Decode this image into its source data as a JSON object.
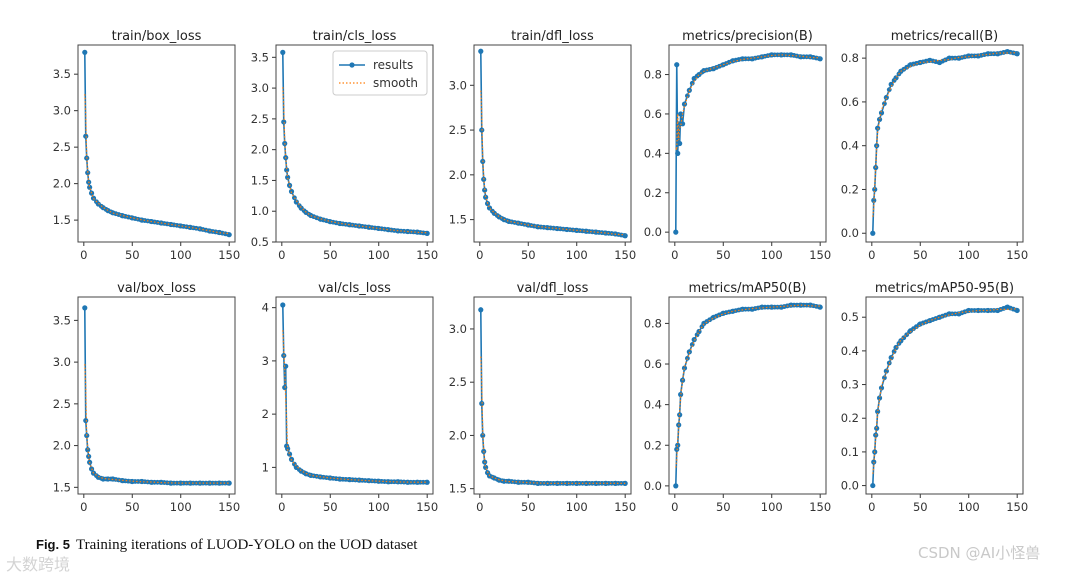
{
  "chart_data": [
    {
      "type": "line",
      "title": "train/box_loss",
      "ylim": [
        1.2,
        3.9
      ],
      "yticks": [
        1.5,
        2.0,
        2.5,
        3.0,
        3.5
      ],
      "xlim": [
        -6,
        156
      ],
      "xticks": [
        0,
        50,
        100,
        150
      ],
      "x": [
        1,
        2,
        3,
        4,
        5,
        6,
        8,
        10,
        15,
        20,
        25,
        30,
        40,
        50,
        60,
        70,
        80,
        90,
        100,
        110,
        120,
        130,
        140,
        150
      ],
      "values": [
        3.8,
        2.65,
        2.35,
        2.15,
        2.02,
        1.95,
        1.87,
        1.8,
        1.72,
        1.67,
        1.63,
        1.6,
        1.56,
        1.53,
        1.5,
        1.48,
        1.46,
        1.44,
        1.42,
        1.4,
        1.38,
        1.35,
        1.33,
        1.3
      ]
    },
    {
      "type": "line",
      "title": "train/cls_loss",
      "ylim": [
        0.5,
        3.7
      ],
      "yticks": [
        0.5,
        1.0,
        1.5,
        2.0,
        2.5,
        3.0,
        3.5
      ],
      "xlim": [
        -6,
        156
      ],
      "xticks": [
        0,
        50,
        100,
        150
      ],
      "x": [
        1,
        2,
        3,
        4,
        5,
        6,
        8,
        10,
        15,
        20,
        25,
        30,
        40,
        50,
        60,
        70,
        80,
        90,
        100,
        110,
        120,
        130,
        140,
        150
      ],
      "values": [
        3.58,
        2.45,
        2.1,
        1.87,
        1.67,
        1.55,
        1.42,
        1.32,
        1.15,
        1.05,
        0.98,
        0.93,
        0.87,
        0.83,
        0.8,
        0.78,
        0.76,
        0.74,
        0.72,
        0.7,
        0.68,
        0.67,
        0.66,
        0.64
      ],
      "legend": {
        "placement": "top-right",
        "entries": [
          "results",
          "smooth"
        ]
      }
    },
    {
      "type": "line",
      "title": "train/dfl_loss",
      "ylim": [
        1.25,
        3.45
      ],
      "yticks": [
        1.5,
        2.0,
        2.5,
        3.0
      ],
      "xlim": [
        -6,
        156
      ],
      "xticks": [
        0,
        50,
        100,
        150
      ],
      "x": [
        1,
        2,
        3,
        4,
        5,
        6,
        8,
        10,
        15,
        20,
        25,
        30,
        40,
        50,
        60,
        70,
        80,
        90,
        100,
        110,
        120,
        130,
        140,
        150
      ],
      "values": [
        3.38,
        2.5,
        2.15,
        1.95,
        1.83,
        1.75,
        1.68,
        1.63,
        1.57,
        1.53,
        1.5,
        1.48,
        1.46,
        1.44,
        1.42,
        1.41,
        1.4,
        1.39,
        1.38,
        1.37,
        1.36,
        1.35,
        1.34,
        1.32
      ]
    },
    {
      "type": "line",
      "title": "metrics/precision(B)",
      "ylim": [
        -0.05,
        0.95
      ],
      "yticks": [
        0.0,
        0.2,
        0.4,
        0.6,
        0.8
      ],
      "xlim": [
        -6,
        156
      ],
      "xticks": [
        0,
        50,
        100,
        150
      ],
      "x": [
        1,
        2,
        3,
        4,
        5,
        6,
        8,
        10,
        15,
        20,
        25,
        30,
        40,
        50,
        60,
        70,
        80,
        90,
        100,
        110,
        120,
        130,
        140,
        150
      ],
      "values": [
        0.0,
        0.85,
        0.4,
        0.55,
        0.45,
        0.6,
        0.55,
        0.65,
        0.72,
        0.78,
        0.8,
        0.82,
        0.83,
        0.85,
        0.87,
        0.88,
        0.88,
        0.89,
        0.9,
        0.9,
        0.9,
        0.89,
        0.89,
        0.88
      ]
    },
    {
      "type": "line",
      "title": "metrics/recall(B)",
      "ylim": [
        -0.04,
        0.86
      ],
      "yticks": [
        0.0,
        0.2,
        0.4,
        0.6,
        0.8
      ],
      "xlim": [
        -6,
        156
      ],
      "xticks": [
        0,
        50,
        100,
        150
      ],
      "x": [
        1,
        2,
        3,
        4,
        5,
        6,
        8,
        10,
        15,
        20,
        25,
        30,
        40,
        50,
        60,
        70,
        80,
        90,
        100,
        110,
        120,
        130,
        140,
        150
      ],
      "values": [
        0.0,
        0.15,
        0.2,
        0.3,
        0.4,
        0.48,
        0.52,
        0.55,
        0.62,
        0.68,
        0.71,
        0.74,
        0.77,
        0.78,
        0.79,
        0.78,
        0.8,
        0.8,
        0.81,
        0.81,
        0.82,
        0.82,
        0.83,
        0.82
      ]
    },
    {
      "type": "line",
      "title": "val/box_loss",
      "ylim": [
        1.42,
        3.78
      ],
      "yticks": [
        1.5,
        2.0,
        2.5,
        3.0,
        3.5
      ],
      "xlim": [
        -6,
        156
      ],
      "xticks": [
        0,
        50,
        100,
        150
      ],
      "x": [
        1,
        2,
        3,
        4,
        5,
        6,
        8,
        10,
        15,
        20,
        25,
        30,
        40,
        50,
        60,
        70,
        80,
        90,
        100,
        110,
        120,
        130,
        140,
        150
      ],
      "values": [
        3.65,
        2.3,
        2.12,
        1.95,
        1.87,
        1.8,
        1.72,
        1.67,
        1.62,
        1.6,
        1.6,
        1.6,
        1.58,
        1.57,
        1.57,
        1.56,
        1.56,
        1.55,
        1.55,
        1.55,
        1.55,
        1.55,
        1.55,
        1.55
      ]
    },
    {
      "type": "line",
      "title": "val/cls_loss",
      "ylim": [
        0.5,
        4.2
      ],
      "yticks": [
        1,
        2,
        3,
        4
      ],
      "xlim": [
        -6,
        156
      ],
      "xticks": [
        0,
        50,
        100,
        150
      ],
      "x": [
        1,
        2,
        3,
        4,
        5,
        6,
        8,
        10,
        15,
        20,
        25,
        30,
        40,
        50,
        60,
        70,
        80,
        90,
        100,
        110,
        120,
        130,
        140,
        150
      ],
      "values": [
        4.05,
        3.1,
        2.5,
        2.9,
        1.4,
        1.35,
        1.25,
        1.15,
        1.0,
        0.93,
        0.88,
        0.85,
        0.82,
        0.8,
        0.78,
        0.77,
        0.76,
        0.75,
        0.74,
        0.73,
        0.73,
        0.72,
        0.72,
        0.72
      ]
    },
    {
      "type": "line",
      "title": "val/dfl_loss",
      "ylim": [
        1.45,
        3.3
      ],
      "yticks": [
        1.5,
        2.0,
        2.5,
        3.0
      ],
      "xlim": [
        -6,
        156
      ],
      "xticks": [
        0,
        50,
        100,
        150
      ],
      "x": [
        1,
        2,
        3,
        4,
        5,
        6,
        8,
        10,
        15,
        20,
        25,
        30,
        40,
        50,
        60,
        70,
        80,
        90,
        100,
        110,
        120,
        130,
        140,
        150
      ],
      "values": [
        3.18,
        2.3,
        2.0,
        1.85,
        1.75,
        1.7,
        1.65,
        1.62,
        1.6,
        1.58,
        1.57,
        1.57,
        1.56,
        1.56,
        1.55,
        1.55,
        1.55,
        1.55,
        1.55,
        1.55,
        1.55,
        1.55,
        1.55,
        1.55
      ]
    },
    {
      "type": "line",
      "title": "metrics/mAP50(B)",
      "ylim": [
        -0.04,
        0.93
      ],
      "yticks": [
        0.0,
        0.2,
        0.4,
        0.6,
        0.8
      ],
      "xlim": [
        -6,
        156
      ],
      "xticks": [
        0,
        50,
        100,
        150
      ],
      "x": [
        1,
        2,
        3,
        4,
        5,
        6,
        8,
        10,
        15,
        20,
        25,
        30,
        40,
        50,
        60,
        70,
        80,
        90,
        100,
        110,
        120,
        130,
        140,
        150
      ],
      "values": [
        0.0,
        0.18,
        0.2,
        0.3,
        0.35,
        0.45,
        0.52,
        0.58,
        0.66,
        0.72,
        0.76,
        0.8,
        0.83,
        0.85,
        0.86,
        0.87,
        0.87,
        0.88,
        0.88,
        0.88,
        0.89,
        0.89,
        0.89,
        0.88
      ]
    },
    {
      "type": "line",
      "title": "metrics/mAP50-95(B)",
      "ylim": [
        -0.025,
        0.56
      ],
      "yticks": [
        0.0,
        0.1,
        0.2,
        0.3,
        0.4,
        0.5
      ],
      "xlim": [
        -6,
        156
      ],
      "xticks": [
        0,
        50,
        100,
        150
      ],
      "x": [
        1,
        2,
        3,
        4,
        5,
        6,
        8,
        10,
        15,
        20,
        25,
        30,
        40,
        50,
        60,
        70,
        80,
        90,
        100,
        110,
        120,
        130,
        140,
        150
      ],
      "values": [
        0.0,
        0.07,
        0.1,
        0.15,
        0.17,
        0.22,
        0.26,
        0.29,
        0.34,
        0.38,
        0.41,
        0.43,
        0.46,
        0.48,
        0.49,
        0.5,
        0.51,
        0.51,
        0.52,
        0.52,
        0.52,
        0.52,
        0.53,
        0.52
      ]
    }
  ],
  "colors": {
    "results": "#1f77b4",
    "smooth": "#ff7f0e"
  },
  "caption": {
    "label": "Fig. 5",
    "text": "Training iterations of LUOD-YOLO on the UOD dataset"
  },
  "watermarks": {
    "right": "CSDN @AI小怪兽",
    "left": "大数跨境"
  }
}
